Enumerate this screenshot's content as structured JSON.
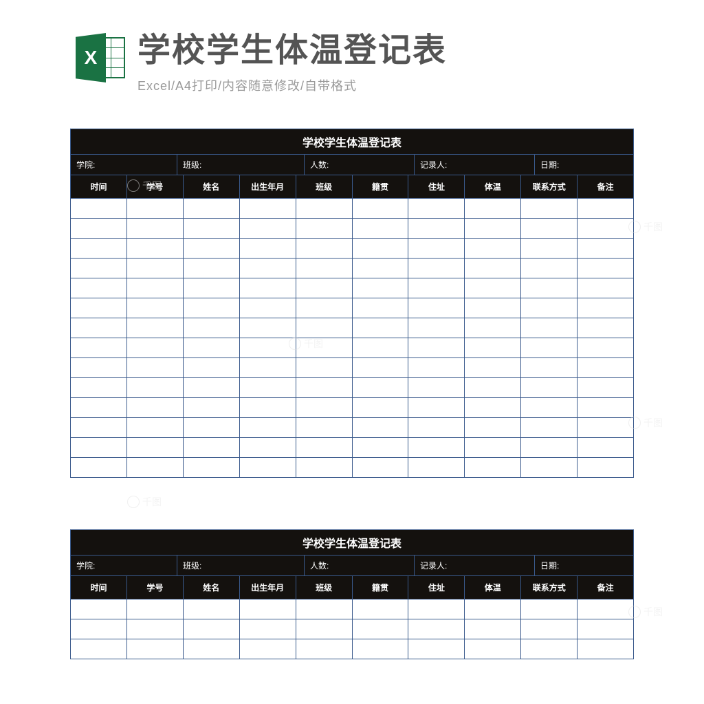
{
  "header": {
    "icon_letter": "X",
    "title": "学校学生体温登记表",
    "subtitle": "Excel/A4打印/内容随意修改/自带格式"
  },
  "sheet": {
    "title": "学校学生体温登记表",
    "meta_labels": {
      "college": "学院:",
      "class": "班级:",
      "count": "人数:",
      "recorder": "记录人:",
      "date": "日期:"
    },
    "columns": [
      "时间",
      "学号",
      "姓名",
      "出生年月",
      "班级",
      "籍贯",
      "住址",
      "体温",
      "联系方式",
      "备注"
    ],
    "meta_widths": [
      155,
      185,
      160,
      175,
      145
    ],
    "num_data_rows_sheet1": 14,
    "num_data_rows_sheet2": 3,
    "colors": {
      "header_bg": "#14110e",
      "header_text": "#ffffff",
      "border": "#3a5a8c",
      "cell_bg": "#ffffff",
      "icon_green": "#1a7243",
      "title_color": "#545454",
      "subtitle_color": "#999999"
    }
  },
  "watermark": {
    "text": "千图"
  }
}
